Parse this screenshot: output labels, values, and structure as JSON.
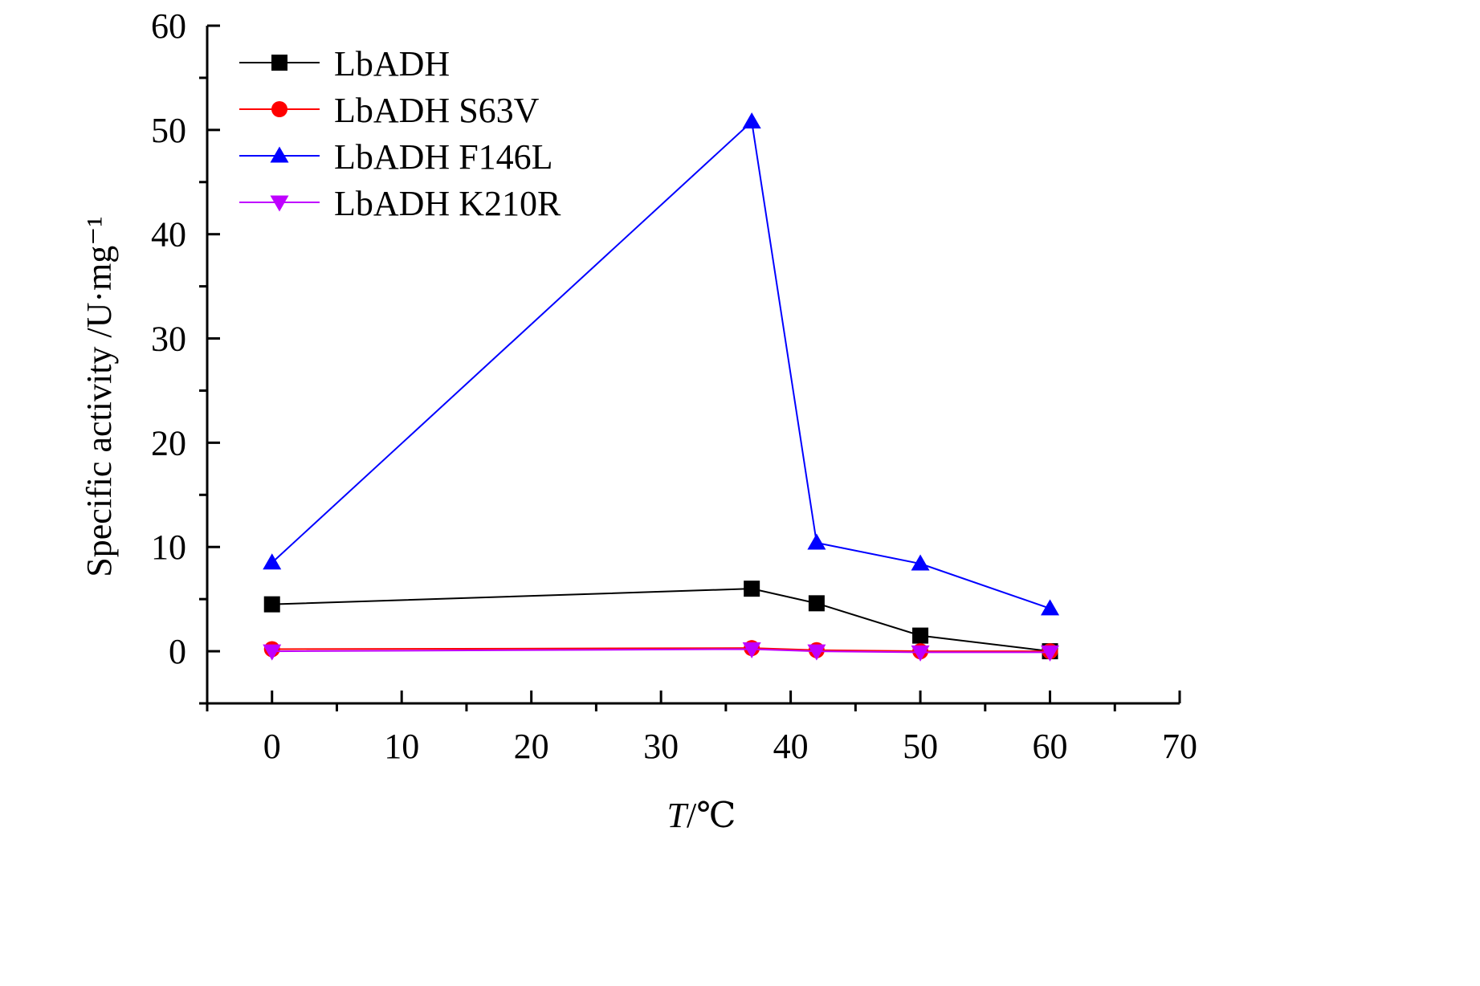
{
  "chart_data": {
    "type": "line",
    "xlabel": {
      "italic": "T",
      "rest": "/℃"
    },
    "ylabel": "Specific activity /U·mg⁻¹",
    "xlim": [
      -5,
      70
    ],
    "ylim": [
      -5,
      60
    ],
    "x_ticks": [
      0,
      10,
      20,
      30,
      40,
      50,
      60,
      70
    ],
    "y_ticks": [
      0,
      10,
      20,
      30,
      40,
      50,
      60
    ],
    "x_tick_labels": [
      "0",
      "10",
      "20",
      "30",
      "40",
      "50",
      "60",
      "70"
    ],
    "y_tick_labels": [
      "0",
      "10",
      "20",
      "30",
      "40",
      "50",
      "60"
    ],
    "grid": false,
    "legend_position": "top-left",
    "x": [
      0,
      37,
      42,
      50,
      60
    ],
    "series": [
      {
        "name": "LbADH",
        "values": [
          4.5,
          6.0,
          4.6,
          1.5,
          0.0
        ],
        "color": "#000000",
        "marker": "square"
      },
      {
        "name": "LbADH S63V",
        "values": [
          0.2,
          0.3,
          0.1,
          0.0,
          0.0
        ],
        "color": "#ff0000",
        "marker": "circle"
      },
      {
        "name": "LbADH F146L",
        "values": [
          8.5,
          50.8,
          10.4,
          8.4,
          4.1
        ],
        "color": "#0000ff",
        "marker": "triangle-up"
      },
      {
        "name": "LbADH K210R",
        "values": [
          0.0,
          0.2,
          0.0,
          -0.1,
          -0.1
        ],
        "color": "#bf00ff",
        "marker": "triangle-down"
      }
    ]
  }
}
